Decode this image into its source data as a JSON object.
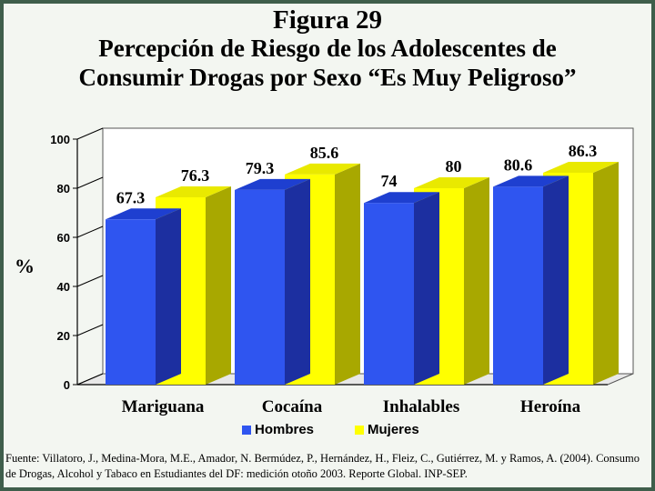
{
  "title": {
    "line1": "Figura  29",
    "line2": "Percepción de Riesgo de los Adolescentes  de",
    "line3": "Consumir Drogas por Sexo “Es Muy Peligroso”"
  },
  "source": "Fuente: Villatoro, J., Medina-Mora, M.E., Amador, N. Bermúdez, P., Hernández, H., Fleiz, C., Gutiérrez, M. y Ramos, A. (2004). Consumo de Drogas, Alcohol y Tabaco en Estudiantes del DF: medición otoño 2003. Reporte Global. INP-SEP.",
  "colors": {
    "hombres": "#2f55f0",
    "mujeres": "#ffff00"
  },
  "chart_data": {
    "type": "bar",
    "categories": [
      "Mariguana",
      "Cocaína",
      "Inhalables",
      "Heroína"
    ],
    "series": [
      {
        "name": "Hombres",
        "values": [
          67.3,
          79.3,
          74,
          80.6
        ],
        "labels": [
          "67.3",
          "79.3",
          "74",
          "80.6"
        ]
      },
      {
        "name": "Mujeres",
        "values": [
          76.3,
          85.6,
          80,
          86.3
        ],
        "labels": [
          "76.3",
          "85.6",
          "80",
          "86.3"
        ]
      }
    ],
    "ylabel": "%",
    "ylim": [
      0,
      100
    ],
    "yticks": [
      "0",
      "20",
      "40",
      "60",
      "80",
      "100"
    ],
    "legend_position": "bottom",
    "grid": false
  }
}
